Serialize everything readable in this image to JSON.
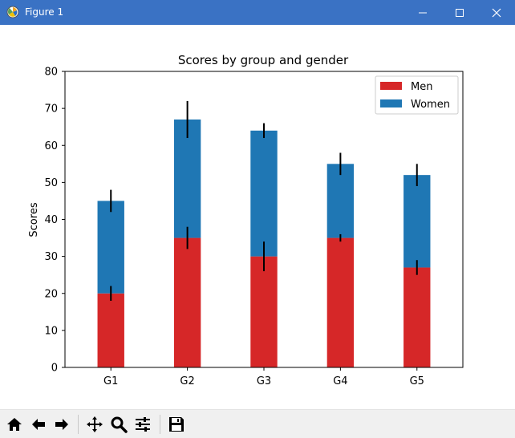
{
  "window": {
    "title": "Figure 1",
    "icon": "matplotlib-figure-icon",
    "controls": [
      "minimize-icon",
      "maximize-icon",
      "close-icon"
    ]
  },
  "toolbar": {
    "buttons": [
      {
        "name": "home-icon",
        "tooltip": ""
      },
      {
        "name": "back-arrow-icon",
        "tooltip": ""
      },
      {
        "name": "forward-arrow-icon",
        "tooltip": ""
      },
      {
        "name": "pan-move-icon",
        "tooltip": ""
      },
      {
        "name": "zoom-magnifier-icon",
        "tooltip": ""
      },
      {
        "name": "subplot-config-icon",
        "tooltip": ""
      },
      {
        "name": "save-floppy-icon",
        "tooltip": ""
      }
    ]
  },
  "chart_data": {
    "type": "bar",
    "stacked": true,
    "title": "Scores by group and gender",
    "xlabel": "",
    "ylabel": "Scores",
    "categories": [
      "G1",
      "G2",
      "G3",
      "G4",
      "G5"
    ],
    "ylim": [
      0,
      80
    ],
    "yticks": [
      "0",
      "10",
      "20",
      "30",
      "40",
      "50",
      "60",
      "70",
      "80"
    ],
    "grid": false,
    "legend_position": "top-right",
    "series": [
      {
        "name": "Men",
        "values": [
          20,
          35,
          30,
          35,
          27
        ],
        "errors": [
          2,
          3,
          4,
          1,
          2
        ],
        "color": "#d62728"
      },
      {
        "name": "Women",
        "values": [
          25,
          32,
          34,
          20,
          25
        ],
        "errors": [
          3,
          5,
          2,
          3,
          3
        ],
        "color": "#1f77b4"
      }
    ],
    "errorbar_color": "#000000"
  }
}
